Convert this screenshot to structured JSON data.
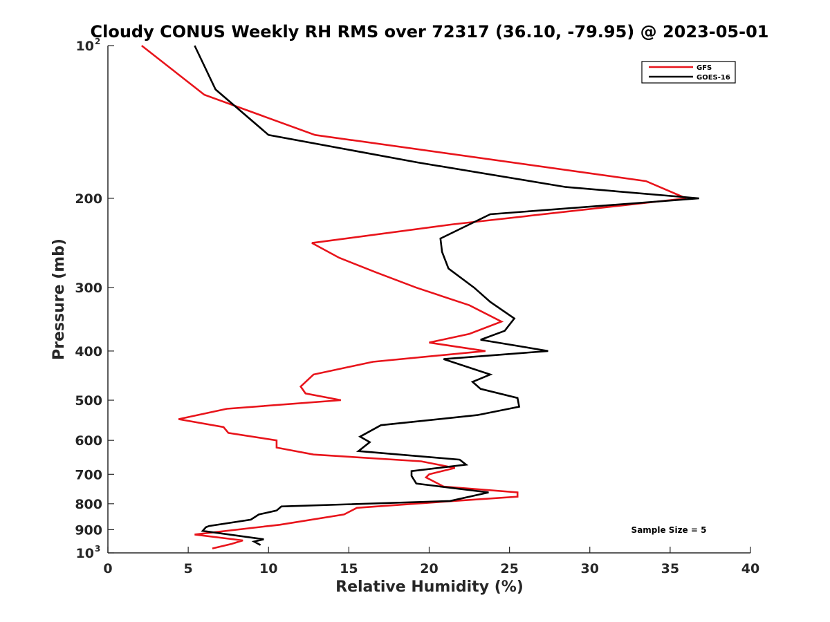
{
  "chart_data": {
    "type": "line",
    "title": "Cloudy CONUS Weekly RH RMS over 72317 (36.10, -79.95) @ 2023-05-01",
    "xlabel": "Relative Humidity (%)",
    "ylabel": "Pressure (mb)",
    "xlim": [
      0,
      40
    ],
    "ylim": [
      100,
      1000
    ],
    "y_scale": "log",
    "y_reversed": true,
    "x_ticks": [
      "0",
      "5",
      "10",
      "15",
      "20",
      "25",
      "30",
      "35",
      "40"
    ],
    "y_ticks": [
      {
        "value": 100,
        "base": "10",
        "exp": "2"
      },
      {
        "value": 200,
        "label": "200"
      },
      {
        "value": 300,
        "label": "300"
      },
      {
        "value": 400,
        "label": "400"
      },
      {
        "value": 500,
        "label": "500"
      },
      {
        "value": 600,
        "label": "600"
      },
      {
        "value": 700,
        "label": "700"
      },
      {
        "value": 800,
        "label": "800"
      },
      {
        "value": 900,
        "label": "900"
      },
      {
        "value": 1000,
        "base": "10",
        "exp": "3"
      }
    ],
    "grid": false,
    "legend_position": "top-right",
    "annotation": "Sample Size = 5",
    "series": [
      {
        "name": "GFS",
        "color": "#e8141b",
        "points": [
          [
            2.1,
            100
          ],
          [
            6,
            125
          ],
          [
            12.9,
            150
          ],
          [
            33.5,
            185
          ],
          [
            36,
            200
          ],
          [
            21.5,
            225
          ],
          [
            12.7,
            245
          ],
          [
            14.4,
            262
          ],
          [
            16.7,
            280
          ],
          [
            19.2,
            300
          ],
          [
            22.5,
            325
          ],
          [
            24.5,
            350
          ],
          [
            22.5,
            370
          ],
          [
            20,
            385
          ],
          [
            23.5,
            400
          ],
          [
            16.5,
            420
          ],
          [
            12.8,
            445
          ],
          [
            12,
            470
          ],
          [
            12.3,
            485
          ],
          [
            14.5,
            500
          ],
          [
            7.4,
            520
          ],
          [
            4.4,
            545
          ],
          [
            7.2,
            565
          ],
          [
            7.5,
            580
          ],
          [
            10.5,
            600
          ],
          [
            10.5,
            620
          ],
          [
            12.8,
            640
          ],
          [
            19.5,
            660
          ],
          [
            21.6,
            680
          ],
          [
            20,
            700
          ],
          [
            19.8,
            710
          ],
          [
            20.9,
            740
          ],
          [
            25.5,
            760
          ],
          [
            25.5,
            775
          ],
          [
            21.5,
            790
          ],
          [
            15.5,
            815
          ],
          [
            14.7,
            840
          ],
          [
            10.7,
            880
          ],
          [
            5.4,
            920
          ],
          [
            8.4,
            945
          ],
          [
            7.7,
            960
          ],
          [
            6.5,
            980
          ]
        ]
      },
      {
        "name": "GOES-16",
        "color": "#000000",
        "points": [
          [
            5.4,
            100
          ],
          [
            6.7,
            122
          ],
          [
            10,
            150
          ],
          [
            19.3,
            170
          ],
          [
            28.5,
            190
          ],
          [
            36.8,
            200
          ],
          [
            23.8,
            215
          ],
          [
            20.7,
            240
          ],
          [
            20.8,
            255
          ],
          [
            21.2,
            275
          ],
          [
            22.8,
            300
          ],
          [
            23.8,
            320
          ],
          [
            25.3,
            345
          ],
          [
            24.7,
            365
          ],
          [
            23.2,
            380
          ],
          [
            27.4,
            400
          ],
          [
            20.9,
            415
          ],
          [
            23.8,
            445
          ],
          [
            22.7,
            460
          ],
          [
            23.2,
            475
          ],
          [
            25.5,
            495
          ],
          [
            25.6,
            515
          ],
          [
            23,
            535
          ],
          [
            17,
            560
          ],
          [
            15.7,
            590
          ],
          [
            16.3,
            605
          ],
          [
            15.6,
            630
          ],
          [
            21.9,
            655
          ],
          [
            22.3,
            670
          ],
          [
            18.9,
            690
          ],
          [
            18.9,
            705
          ],
          [
            19.2,
            730
          ],
          [
            23.7,
            760
          ],
          [
            21.3,
            790
          ],
          [
            10.8,
            810
          ],
          [
            10.5,
            825
          ],
          [
            9.4,
            840
          ],
          [
            8.9,
            860
          ],
          [
            6.3,
            885
          ],
          [
            6.1,
            890
          ],
          [
            5.9,
            905
          ],
          [
            9.7,
            940
          ],
          [
            9.1,
            950
          ],
          [
            9.5,
            965
          ]
        ]
      }
    ]
  }
}
